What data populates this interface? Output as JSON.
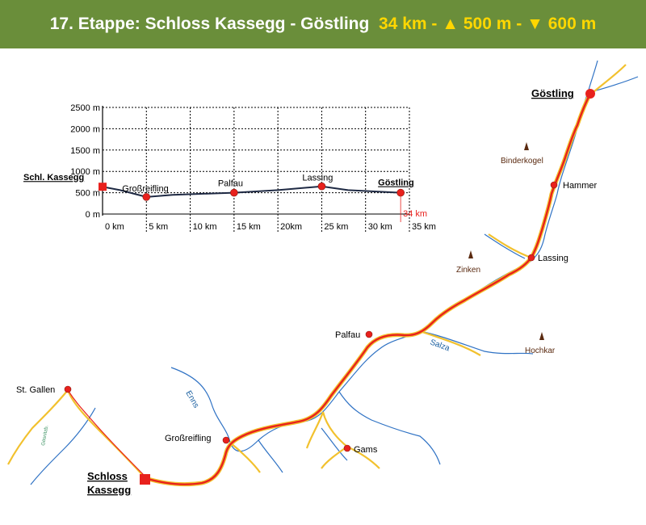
{
  "header": {
    "title": "17. Etappe: Schloss Kassegg - Göstling",
    "distance": "34 km",
    "sep1": "-",
    "ascent": "▲ 500 m",
    "sep2": "-",
    "descent": "▼ 600 m",
    "background_color": "#6a8e3a",
    "highlight_color": "#ffd700"
  },
  "map": {
    "places": [
      {
        "key": "goestling",
        "label": "Göstling",
        "type": "end"
      },
      {
        "key": "hammer",
        "label": "Hammer",
        "type": "town"
      },
      {
        "key": "lassing",
        "label": "Lassing",
        "type": "town"
      },
      {
        "key": "palfau",
        "label": "Palfau",
        "type": "town"
      },
      {
        "key": "st_gallen",
        "label": "St. Gallen",
        "type": "town"
      },
      {
        "key": "grossreifling",
        "label": "Großreifling",
        "type": "town"
      },
      {
        "key": "gams",
        "label": "Gams",
        "type": "town"
      },
      {
        "key": "schloss_kassegg",
        "label_line1": "Schloss",
        "label_line2": "Kassegg",
        "type": "start"
      }
    ],
    "peaks": [
      {
        "key": "binderkogel",
        "label": "Binderkogel"
      },
      {
        "key": "zinken",
        "label": "Zinken"
      },
      {
        "key": "hochkar",
        "label": "Hochkar"
      }
    ],
    "rivers": [
      {
        "key": "enns",
        "label": "Enns"
      },
      {
        "key": "salza",
        "label": "Salza"
      },
      {
        "key": "goesnitz",
        "label": "Gösnitzb."
      }
    ],
    "colors": {
      "route": "#e8211d",
      "road": "#f2c12e",
      "river": "#2f72c4",
      "town": "#e8211d",
      "peak": "#5a2a10"
    }
  },
  "elevation_profile": {
    "chart_data": {
      "type": "line",
      "x_unit": "km",
      "y_unit": "m",
      "x_ticks": [
        "0 km",
        "5 km",
        "10 km",
        "15 km",
        "20km",
        "25 km",
        "30 km",
        "35 km"
      ],
      "y_ticks": [
        "2500 m",
        "2000 m",
        "1500 m",
        "1000 m",
        "500 m",
        "0 m"
      ],
      "xlim": [
        0,
        35
      ],
      "ylim": [
        0,
        2500
      ],
      "grid": true,
      "x": [
        0,
        2,
        5,
        8,
        12,
        15,
        20,
        25,
        28,
        34
      ],
      "y": [
        640,
        560,
        400,
        450,
        480,
        500,
        560,
        650,
        560,
        500
      ],
      "points": [
        {
          "name": "Schl. Kassegg",
          "x": 0,
          "y": 640,
          "marker": "square"
        },
        {
          "name": "Großreifling",
          "x": 5,
          "y": 400,
          "marker": "circle"
        },
        {
          "name": "Palfau",
          "x": 15,
          "y": 500,
          "marker": "circle"
        },
        {
          "name": "Lassing",
          "x": 25,
          "y": 650,
          "marker": "circle"
        },
        {
          "name": "Göstling",
          "x": 34,
          "y": 500,
          "marker": "circle"
        }
      ],
      "end_marker_label": "34 km",
      "line_color": "#1f2a44",
      "marker_color": "#e8211d"
    }
  }
}
